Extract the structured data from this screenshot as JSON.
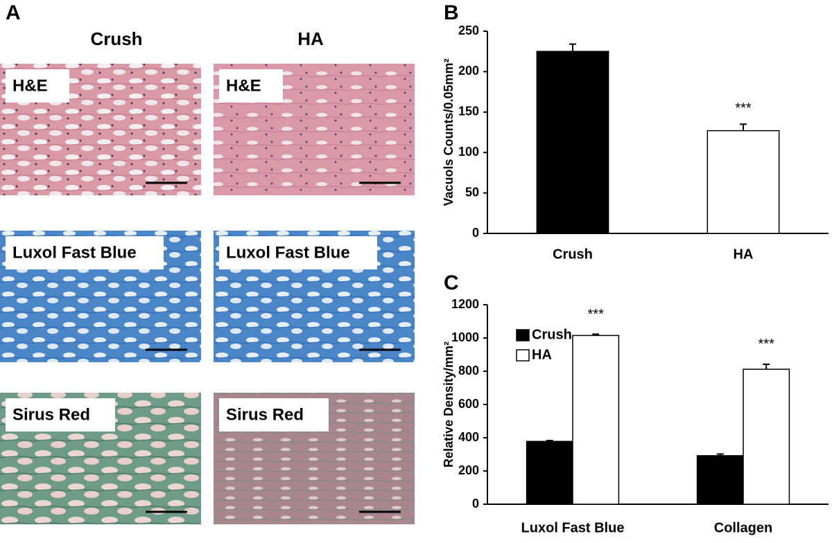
{
  "panel_a": {
    "panel_label": "A",
    "columns": [
      "Crush",
      "HA"
    ],
    "rows": [
      "H&E",
      "Luxol Fast Blue",
      "Sirus Red"
    ]
  },
  "chart_data": [
    {
      "type": "bar",
      "panel_label": "B",
      "y_label": "Vacuols Counts/0.05mm²",
      "categories": [
        "Crush",
        "HA"
      ],
      "values": [
        225,
        127
      ],
      "errors": [
        9,
        8
      ],
      "colors": [
        "#000000",
        "#ffffff"
      ],
      "value_annotations": [
        null,
        "***"
      ],
      "ylim": [
        0,
        250
      ],
      "yticks": [
        0,
        50,
        100,
        150,
        200,
        250
      ]
    },
    {
      "type": "grouped-bar",
      "panel_label": "C",
      "y_label": "Relative Density/mm²",
      "categories": [
        "Luxol Fast Blue",
        "Collagen"
      ],
      "series": [
        {
          "name": "Crush",
          "color": "#000000",
          "values": [
            378,
            292
          ],
          "errors": [
            5,
            10
          ],
          "annotations": [
            null,
            null
          ]
        },
        {
          "name": "HA",
          "color": "#ffffff",
          "values": [
            1015,
            812
          ],
          "errors": [
            8,
            30
          ],
          "annotations": [
            "***",
            "***"
          ]
        }
      ],
      "legend": "upper-left",
      "ylim": [
        0,
        1200
      ],
      "yticks": [
        0,
        200,
        400,
        600,
        800,
        1000,
        1200
      ]
    }
  ]
}
